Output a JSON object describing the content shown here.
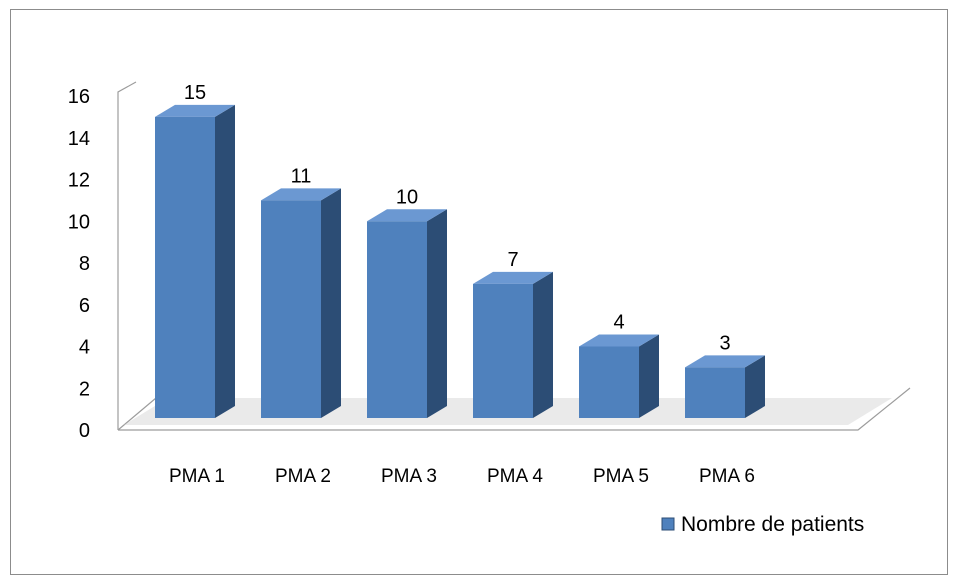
{
  "chart_data": {
    "type": "bar",
    "categories": [
      "PMA 1",
      "PMA 2",
      "PMA 3",
      "PMA 4",
      "PMA 5",
      "PMA 6"
    ],
    "series": [
      {
        "name": "Nombre de patients",
        "values": [
          15,
          11,
          10,
          7,
          4,
          3
        ]
      }
    ],
    "data_labels": [
      "15",
      "11",
      "10",
      "7",
      "4",
      "3"
    ],
    "y_ticks": [
      "0",
      "2",
      "4",
      "6",
      "8",
      "10",
      "12",
      "14",
      "16"
    ],
    "ylim": [
      0,
      16
    ],
    "grid": false,
    "three_d": true,
    "legend": {
      "position": "bottom-right",
      "label": "Nombre de patients"
    },
    "colors": {
      "bar_front": "#4f81bd",
      "bar_top": "#6b98d2",
      "bar_side": "#2c4d75",
      "floor": "#d9d9d9"
    }
  }
}
